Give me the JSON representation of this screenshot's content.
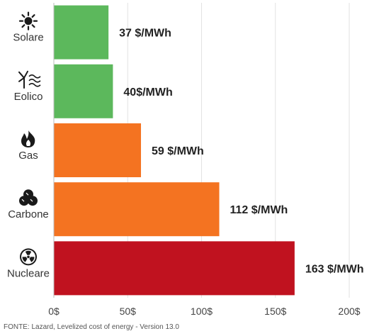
{
  "chart_data": {
    "type": "bar",
    "orientation": "horizontal",
    "categories": [
      "Solare",
      "Eolico",
      "Gas",
      "Carbone",
      "Nucleare"
    ],
    "icons": [
      "sun-icon",
      "wind-turbine-icon",
      "flame-icon",
      "coal-icon",
      "radiation-icon"
    ],
    "values": [
      37,
      40,
      59,
      112,
      163
    ],
    "value_labels": [
      "37 $/MWh",
      "40$/MWh",
      "59 $/MWh",
      "112 $/MWh",
      "163 $/MWh"
    ],
    "colors": [
      "#5cb85c",
      "#5cb85c",
      "#f47321",
      "#f47321",
      "#c0121f"
    ],
    "xlim": [
      0,
      200
    ],
    "xticks": [
      0,
      50,
      100,
      150,
      200
    ],
    "xtick_labels": [
      "0$",
      "50$",
      "100$",
      "150$",
      "200$"
    ],
    "grid": true,
    "title": "",
    "xlabel": "",
    "ylabel": ""
  },
  "source": "FONTE: Lazard, Levelized cost of energy - Version 13.0"
}
